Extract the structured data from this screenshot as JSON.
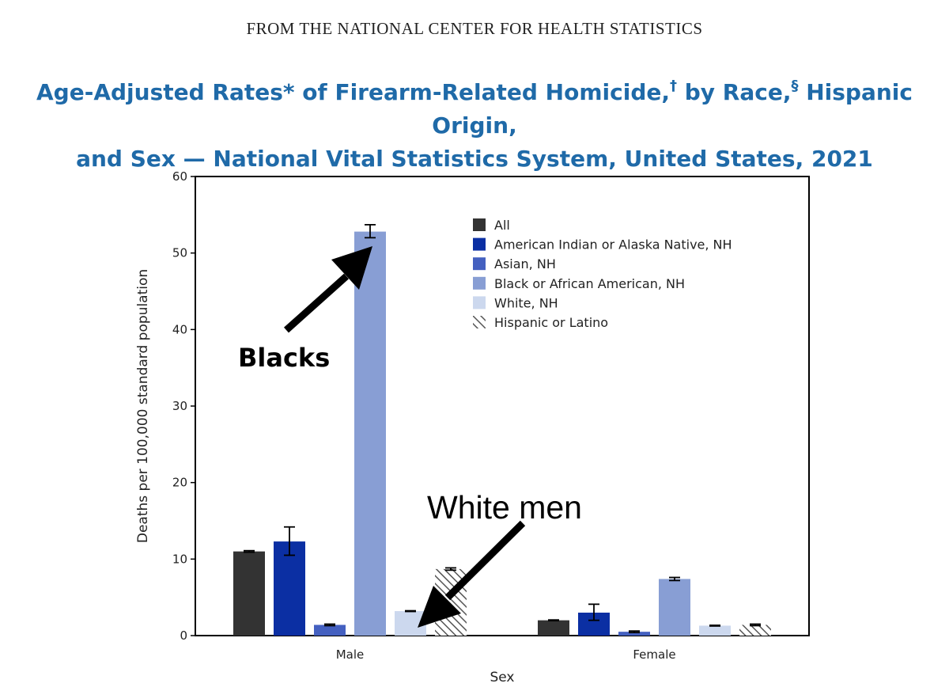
{
  "header": {
    "source": "FROM THE NATIONAL CENTER FOR HEALTH STATISTICS"
  },
  "title": {
    "line1_a": "Age-Adjusted Rates* of Firearm-Related Homicide,",
    "dagger": "†",
    "line1_b": " by Race,",
    "section": "§",
    "line1_c": " Hispanic Origin,",
    "line2": "and Sex — National Vital Statistics System, United States, 2021"
  },
  "chart_data": {
    "type": "bar",
    "title": "Age-Adjusted Rates* of Firearm-Related Homicide,† by Race,§ Hispanic Origin, and Sex — National Vital Statistics System, United States, 2021",
    "xlabel": "Sex",
    "ylabel": "Deaths per 100,000 standard population",
    "ylim": [
      0,
      60
    ],
    "yticks": [
      0,
      10,
      20,
      30,
      40,
      50,
      60
    ],
    "grid": false,
    "legend_position": "top-right",
    "categories": [
      "Male",
      "Female"
    ],
    "series": [
      {
        "name": "All",
        "color": "#333333",
        "pattern": "solid",
        "values": [
          11.0,
          2.0
        ],
        "ci_low": [
          10.9,
          1.95
        ],
        "ci_high": [
          11.1,
          2.05
        ]
      },
      {
        "name": "American Indian or Alaska Native, NH",
        "color": "#0b2fa3",
        "pattern": "solid",
        "values": [
          12.3,
          3.0
        ],
        "ci_low": [
          10.5,
          2.0
        ],
        "ci_high": [
          14.2,
          4.1
        ]
      },
      {
        "name": "Asian, NH",
        "color": "#4460c0",
        "pattern": "solid",
        "values": [
          1.4,
          0.5
        ],
        "ci_low": [
          1.3,
          0.4
        ],
        "ci_high": [
          1.5,
          0.6
        ]
      },
      {
        "name": "Black or African American, NH",
        "color": "#889ed4",
        "pattern": "solid",
        "values": [
          52.8,
          7.4
        ],
        "ci_low": [
          52.0,
          7.2
        ],
        "ci_high": [
          53.7,
          7.6
        ]
      },
      {
        "name": "White, NH",
        "color": "#ccd8ee",
        "pattern": "solid",
        "values": [
          3.2,
          1.3
        ],
        "ci_low": [
          3.15,
          1.25
        ],
        "ci_high": [
          3.25,
          1.35
        ]
      },
      {
        "name": "Hispanic or Latino",
        "color": "#555555",
        "pattern": "hatch",
        "values": [
          8.7,
          1.4
        ],
        "ci_low": [
          8.55,
          1.3
        ],
        "ci_high": [
          8.85,
          1.5
        ]
      }
    ],
    "annotations": [
      {
        "text": "Blacks",
        "points_to": "Male / Black or African American, NH"
      },
      {
        "text": "White men",
        "points_to": "Male / White, NH"
      }
    ]
  }
}
